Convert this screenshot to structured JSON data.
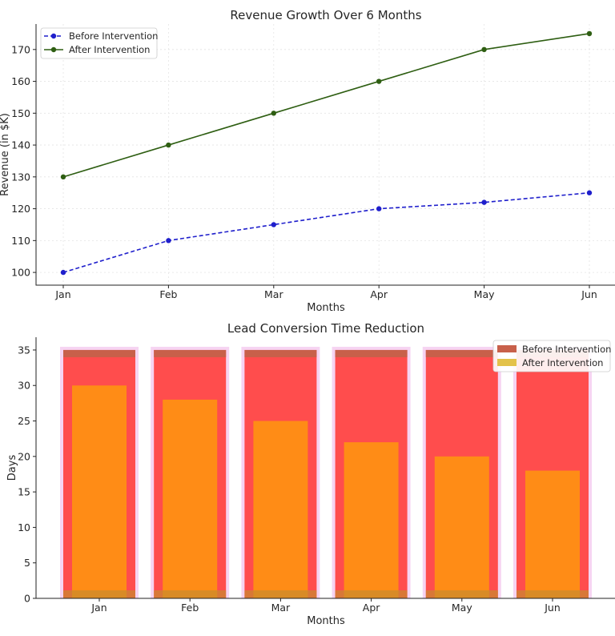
{
  "chart_data": [
    {
      "type": "line",
      "title": "Revenue Growth Over 6 Months",
      "xlabel": "Months",
      "ylabel": "Revenue (in $K)",
      "categories": [
        "Jan",
        "Feb",
        "Mar",
        "Apr",
        "May",
        "Jun"
      ],
      "ylim": [
        96,
        178
      ],
      "yticks": [
        100,
        110,
        120,
        130,
        140,
        150,
        160,
        170
      ],
      "grid": true,
      "legend": "top-left",
      "series": [
        {
          "name": "Before Intervention",
          "values": [
            100,
            110,
            115,
            120,
            122,
            125
          ],
          "color": "#1f1fcc",
          "style": "dashed"
        },
        {
          "name": "After Intervention",
          "values": [
            130,
            140,
            150,
            160,
            170,
            175
          ],
          "color": "#2e5e12",
          "style": "solid"
        }
      ]
    },
    {
      "type": "bar",
      "title": "Lead Conversion Time Reduction",
      "xlabel": "Months",
      "ylabel": "Days",
      "categories": [
        "Jan",
        "Feb",
        "Mar",
        "Apr",
        "May",
        "Jun"
      ],
      "ylim": [
        0,
        36.8
      ],
      "yticks": [
        0,
        5,
        10,
        15,
        20,
        25,
        30,
        35
      ],
      "grid": false,
      "legend": "top-right",
      "series": [
        {
          "name": "Before Intervention",
          "values": [
            35,
            35,
            35,
            35,
            35,
            35
          ],
          "color": "#ff4d4d",
          "legend_color": "#c8604a"
        },
        {
          "name": "After Intervention",
          "values": [
            30,
            28,
            25,
            22,
            20,
            18
          ],
          "color": "#ff8c16",
          "legend_color": "#e3c24a"
        }
      ]
    }
  ]
}
